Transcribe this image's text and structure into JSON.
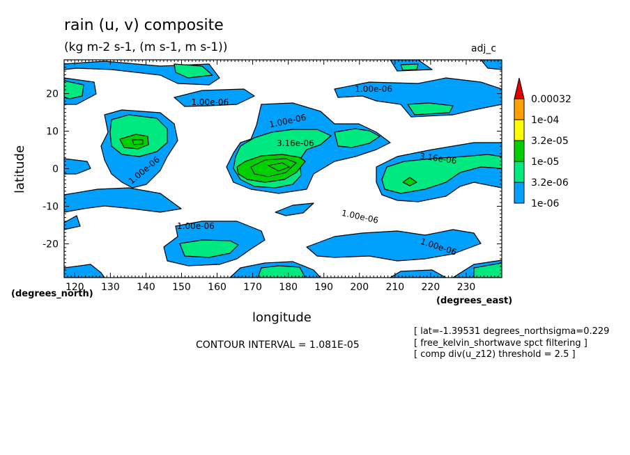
{
  "chart_data": {
    "type": "contour",
    "title": "rain (u, v) composite",
    "subtitle": "(kg m-2 s-1, (m s-1, m s-1))",
    "tag": "adj_c",
    "xlabel": "longitude",
    "ylabel": "latitude",
    "x_units": "(degrees_east)",
    "y_units": "(degrees_north)",
    "xlim": [
      117,
      240
    ],
    "ylim": [
      -29,
      29
    ],
    "x_ticks": [
      120,
      130,
      140,
      150,
      160,
      170,
      180,
      190,
      200,
      210,
      220,
      230
    ],
    "y_ticks": [
      20,
      10,
      0,
      -10,
      -20
    ],
    "levels": [
      "1e-06",
      "3.2e-06",
      "1e-05",
      "3.2e-05",
      "1e-04",
      "0.00032"
    ],
    "level_colors": [
      "#00a0ff",
      "#00e880",
      "#00d000",
      "#ffff00",
      "#ffa000",
      "#e00000"
    ],
    "contour_labels": [
      {
        "text": "1.00e-06",
        "lon": 158,
        "lat": 17,
        "angle": 0
      },
      {
        "text": "1.00e-06",
        "lon": 204,
        "lat": 20.5,
        "angle": 0
      },
      {
        "text": "1.00e-06",
        "lon": 180,
        "lat": 12,
        "angle": 12
      },
      {
        "text": "3.16e-06",
        "lon": 182,
        "lat": 6,
        "angle": 0
      },
      {
        "text": "1.00e-06",
        "lon": 140,
        "lat": -1,
        "angle": 40
      },
      {
        "text": "3.16e-06",
        "lon": 222,
        "lat": 2,
        "angle": -8
      },
      {
        "text": "1.00e-06",
        "lon": 200,
        "lat": -13.5,
        "angle": -12
      },
      {
        "text": "1.00e-06",
        "lon": 154,
        "lat": -16,
        "angle": 0
      },
      {
        "text": "1.00e-06",
        "lon": 222,
        "lat": -21.5,
        "angle": -18
      }
    ]
  },
  "contour_interval": "CONTOUR INTERVAL = 1.081E-05",
  "notes": [
    "[ lat=-1.39531 degrees_northsigma=0.229",
    "[ free_kelvin_shortwave spct filtering ]",
    "[ comp div(u_z12) threshold = 2.5 ]"
  ],
  "colors": {
    "blue": "#00a0ff",
    "green_light": "#00e880",
    "green": "#00d000"
  }
}
